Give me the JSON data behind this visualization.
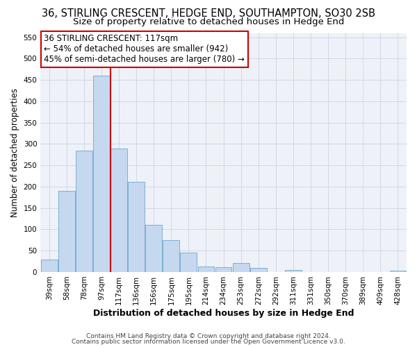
{
  "title": "36, STIRLING CRESCENT, HEDGE END, SOUTHAMPTON, SO30 2SB",
  "subtitle": "Size of property relative to detached houses in Hedge End",
  "xlabel": "Distribution of detached houses by size in Hedge End",
  "ylabel": "Number of detached properties",
  "bar_labels": [
    "39sqm",
    "58sqm",
    "78sqm",
    "97sqm",
    "117sqm",
    "136sqm",
    "156sqm",
    "175sqm",
    "195sqm",
    "214sqm",
    "234sqm",
    "253sqm",
    "272sqm",
    "292sqm",
    "311sqm",
    "331sqm",
    "350sqm",
    "370sqm",
    "389sqm",
    "409sqm",
    "428sqm"
  ],
  "bar_values": [
    30,
    190,
    285,
    460,
    290,
    212,
    110,
    74,
    46,
    13,
    12,
    21,
    9,
    0,
    5,
    0,
    0,
    0,
    0,
    0,
    3
  ],
  "bar_color": "#c5d8ef",
  "bar_edge_color": "#7bafd4",
  "vline_color": "#cc0000",
  "vline_x_idx": 3.5,
  "ylim": [
    0,
    560
  ],
  "yticks": [
    0,
    50,
    100,
    150,
    200,
    250,
    300,
    350,
    400,
    450,
    500,
    550
  ],
  "annotation_title": "36 STIRLING CRESCENT: 117sqm",
  "annotation_line1": "← 54% of detached houses are smaller (942)",
  "annotation_line2": "45% of semi-detached houses are larger (780) →",
  "annotation_box_color": "#ffffff",
  "annotation_box_edge": "#cc0000",
  "footer1": "Contains HM Land Registry data © Crown copyright and database right 2024.",
  "footer2": "Contains public sector information licensed under the Open Government Licence v3.0.",
  "title_fontsize": 10.5,
  "subtitle_fontsize": 9.5,
  "xlabel_fontsize": 9,
  "ylabel_fontsize": 8.5,
  "tick_fontsize": 7.5,
  "annotation_fontsize": 8.5,
  "footer_fontsize": 6.5,
  "bg_color": "#eef2f8",
  "grid_color": "#c8d4e4",
  "figure_bg": "#ffffff"
}
